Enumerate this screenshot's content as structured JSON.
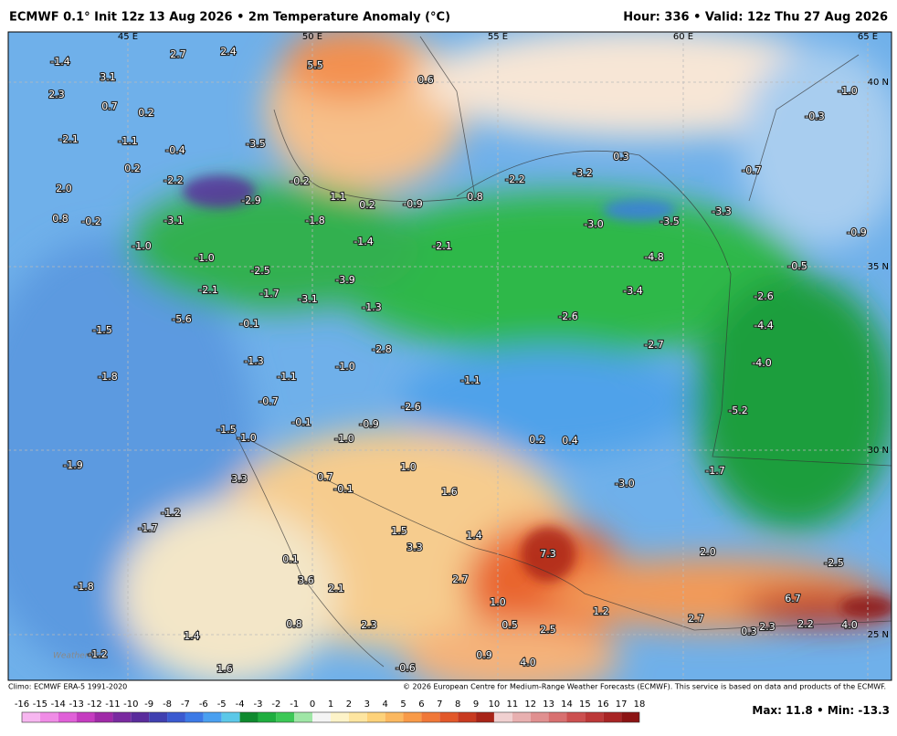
{
  "header": {
    "title": "ECMWF 0.1° Init 12z 13 Aug 2026 • 2m Temperature Anomaly (°C)",
    "valid": "Hour: 336 • Valid: 12z Thu 27 Aug 2026"
  },
  "map": {
    "lon_labels": [
      "45 E",
      "50 E",
      "55 E",
      "60 E",
      "65 E"
    ],
    "lat_labels": [
      "40 N",
      "35 N",
      "30 N",
      "25 N"
    ],
    "logo": "WeatherBELL",
    "labels": [
      "-1.4",
      "3.1",
      "2.7",
      "2.4",
      "5.5",
      "0.6",
      "-1.0",
      "-0.3",
      "2.3",
      "0.7",
      "0.2",
      "-2.1",
      "-1.1",
      "-0.4",
      "-3.5",
      "0.3",
      "0.2",
      "-2.2",
      "-0.2",
      "-3.2",
      "-0.7",
      "2.0",
      "-2.9",
      "1.1",
      "0.2",
      "-0.9",
      "0.8",
      "-2.2",
      "0.8",
      "-0.2",
      "-3.1",
      "-1.8",
      "-3.0",
      "-3.5",
      "-3.3",
      "-0.9",
      "-1.0",
      "-1.4",
      "-2.1",
      "-4.8",
      "-1.0",
      "-2.5",
      "-0.5",
      "-3.9",
      "-2.1",
      "-1.7",
      "-3.1",
      "-3.4",
      "-2.6",
      "-1.3",
      "-5.6",
      "-0.1",
      "-2.6",
      "-1.5",
      "-4.4",
      "-2.8",
      "-2.7",
      "-1.3",
      "-1.0",
      "-4.0",
      "-1.8",
      "-1.1",
      "-1.1",
      "-0.7",
      "-2.6",
      "-5.2",
      "-1.5",
      "-0.1",
      "-0.9",
      "-1.0",
      "-1.0",
      "0.2",
      "0.4",
      "-1.9",
      "1.0",
      "3.3",
      "0.7",
      "-0.1",
      "1.6",
      "-3.0",
      "-1.7",
      "-1.2",
      "-1.7",
      "1.5",
      "1.4",
      "3.3",
      "7.3",
      "2.0",
      "-2.5",
      "0.1",
      "2.7",
      "3.6",
      "2.1",
      "-1.8",
      "1.0",
      "6.7",
      "1.2",
      "2.7",
      "0.8",
      "0.5",
      "2.3",
      "2.5",
      "2.3",
      "2.2",
      "0.3",
      "4.0",
      "1.4",
      "-1.2",
      "0.9",
      "4.0",
      "1.6",
      "-0.6"
    ]
  },
  "footer": {
    "climo": "Climo: ECMWF ERA-5 1991-2020",
    "copyright": "© 2026 European Centre for Medium-Range Weather Forecasts (ECMWF). This service is based on data and products of the ECMWF.",
    "colorbar": {
      "ticks": [
        -16,
        -15,
        -14,
        -13,
        -12,
        -11,
        -10,
        -9,
        -8,
        -7,
        -6,
        -5,
        -4,
        -3,
        -2,
        -1,
        0,
        1,
        2,
        3,
        4,
        5,
        6,
        7,
        8,
        9,
        10,
        11,
        12,
        13,
        14,
        15,
        16,
        17,
        18
      ],
      "colors": [
        "#f7b6f0",
        "#f08ce6",
        "#e060d8",
        "#c53cc0",
        "#a02aa8",
        "#7a2aa0",
        "#5a2c9c",
        "#4040b0",
        "#3a5ad0",
        "#3c7ae6",
        "#4aa0f0",
        "#5cc8e8",
        "#0f8a2e",
        "#1fae3f",
        "#3cc856",
        "#9fe6a6",
        "#f4f4f4",
        "#fdf3c8",
        "#fde5a0",
        "#fdd27a",
        "#fbb860",
        "#f89a48",
        "#f07838",
        "#e2582a",
        "#c83a20",
        "#a82418",
        "#f0d0d0",
        "#e8b0b0",
        "#e09090",
        "#d87070",
        "#cc5050",
        "#bc3838",
        "#a82424",
        "#8c1414"
      ]
    },
    "max_label": "Max:",
    "max": 11.8,
    "min_label": "Min:",
    "min": -13.3
  }
}
